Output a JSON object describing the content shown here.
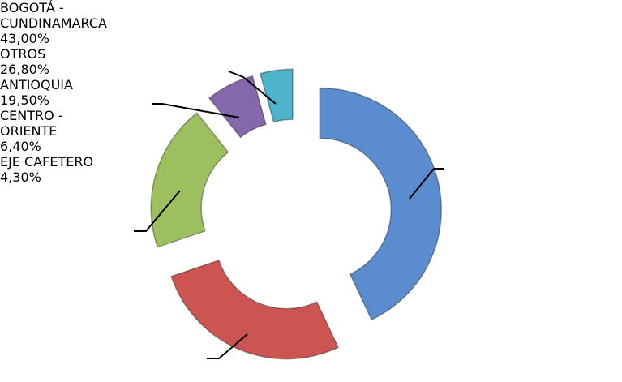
{
  "chart_data": {
    "type": "donut",
    "categories": [
      "BOGOTÁ - CUNDINAMARCA",
      "OTROS",
      "ANTIOQUIA",
      "CENTRO - ORIENTE",
      "EJE CAFETERO"
    ],
    "values": [
      43.0,
      26.8,
      19.5,
      6.4,
      4.3
    ],
    "value_labels": [
      "43,00%",
      "26,80%",
      "19,50%",
      "6,40%",
      "4,30%"
    ],
    "colors": [
      "#5a8ccf",
      "#cc5552",
      "#9dc05f",
      "#8468ab",
      "#4eb4cd"
    ]
  }
}
